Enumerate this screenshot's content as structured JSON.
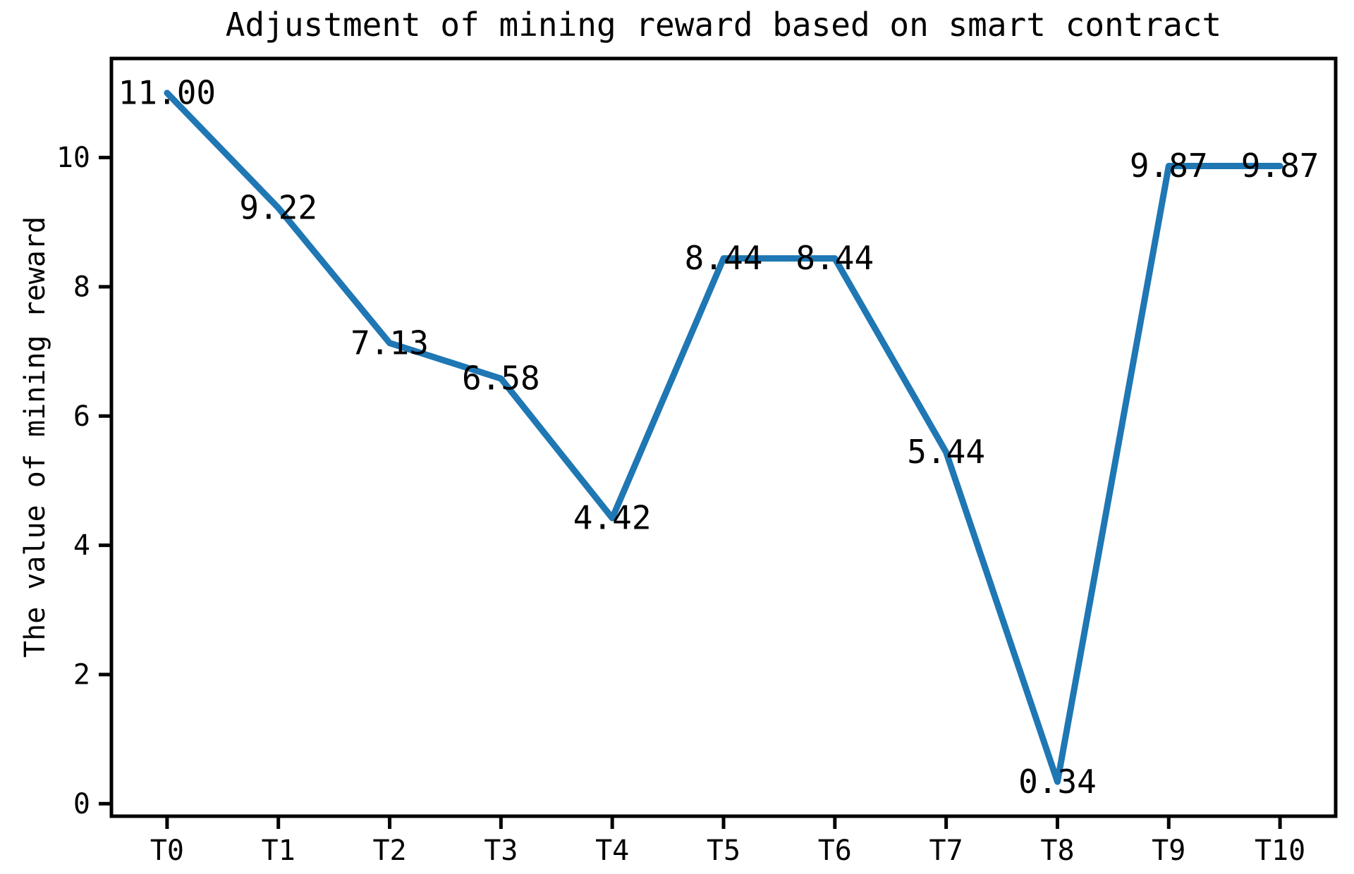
{
  "chart_data": {
    "type": "line",
    "title": "Adjustment of mining reward based on smart contract",
    "xlabel": "",
    "ylabel": "The value of mining reward",
    "categories": [
      "T0",
      "T1",
      "T2",
      "T3",
      "T4",
      "T5",
      "T6",
      "T7",
      "T8",
      "T9",
      "T10"
    ],
    "values": [
      11.0,
      9.22,
      7.13,
      6.58,
      4.42,
      8.44,
      8.44,
      5.44,
      0.34,
      9.87,
      9.87
    ],
    "point_labels": [
      "11.00",
      "9.22",
      "7.13",
      "6.58",
      "4.42",
      "8.44",
      "8.44",
      "5.44",
      "0.34",
      "9.87",
      "9.87"
    ],
    "yticks": [
      0,
      2,
      4,
      6,
      8,
      10
    ],
    "ylim": [
      -0.193,
      11.533
    ],
    "x_margin": 0.5,
    "line_color": "#1f77b4",
    "axis_color": "#000000",
    "grid": false,
    "legend": null
  }
}
